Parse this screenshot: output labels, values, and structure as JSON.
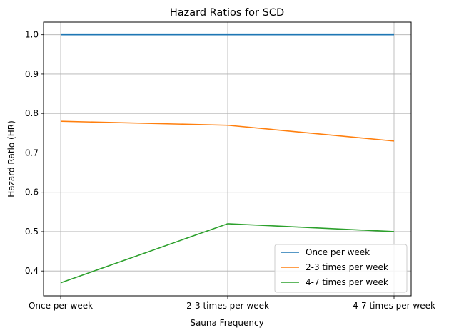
{
  "chart_data": {
    "type": "line",
    "title": "Hazard Ratios for SCD",
    "xlabel": "Sauna Frequency",
    "ylabel": "Hazard Ratio (HR)",
    "categories": [
      "Once per week",
      "2-3 times per week",
      "4-7 times per week"
    ],
    "series": [
      {
        "name": "Once per week",
        "color": "#1f77b4",
        "values": [
          1.0,
          1.0,
          1.0
        ]
      },
      {
        "name": "2-3 times per week",
        "color": "#ff7f0e",
        "values": [
          0.78,
          0.77,
          0.73
        ]
      },
      {
        "name": "4-7 times per week",
        "color": "#2ca02c",
        "values": [
          0.37,
          0.52,
          0.5
        ]
      }
    ],
    "ylim": [
      0.337,
      1.032
    ],
    "yticks": [
      "0.4",
      "0.5",
      "0.6",
      "0.7",
      "0.8",
      "0.9",
      "1.0"
    ],
    "grid": true,
    "legend_position": "lower-right"
  }
}
